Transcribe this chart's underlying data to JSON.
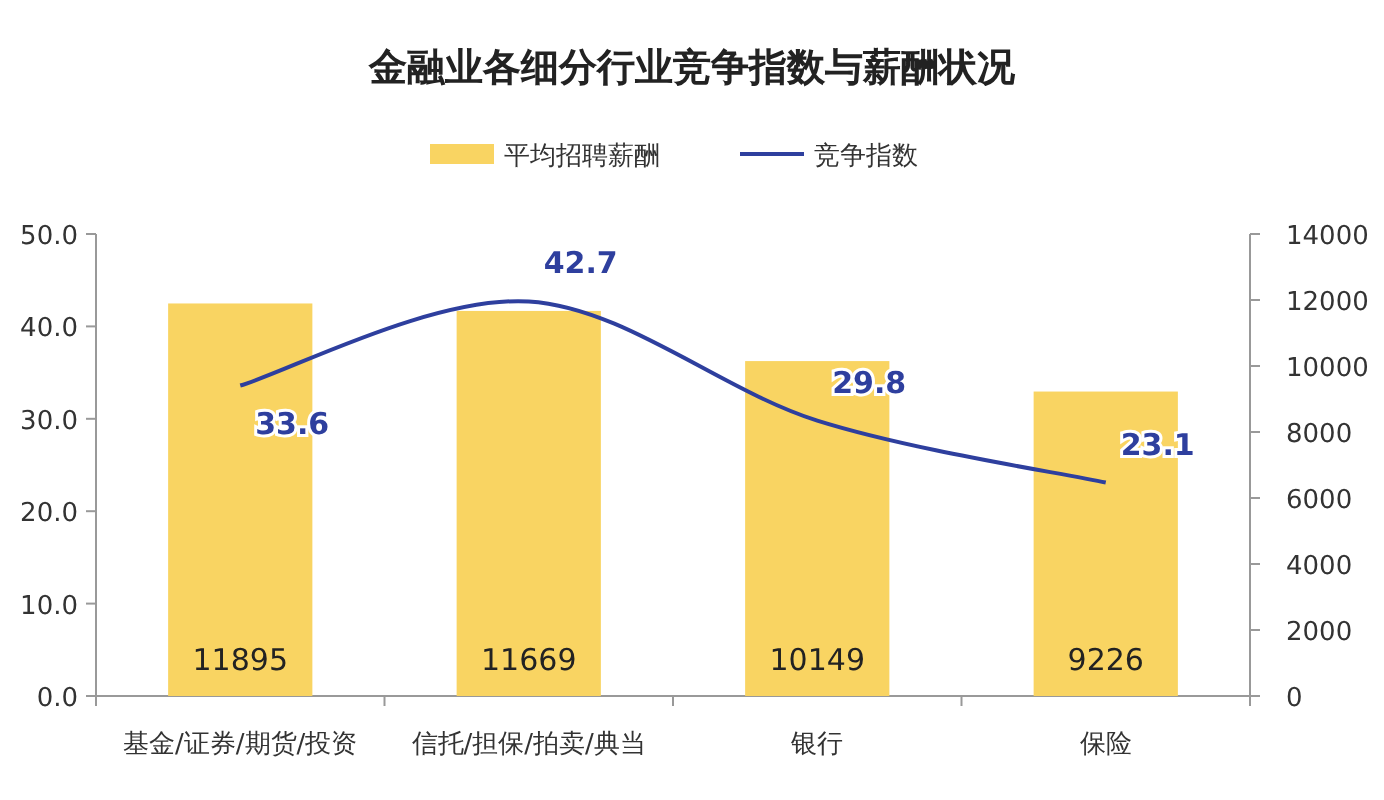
{
  "chart_data": {
    "type": "bar",
    "title": "金融业各细分行业竞争指数与薪酬状况",
    "categories": [
      "基金/证券/期货/投资",
      "信托/担保/拍卖/典当",
      "银行",
      "保险"
    ],
    "series": [
      {
        "name": "平均招聘薪酬",
        "type": "bar",
        "axis": "y2",
        "color": "#f9d462",
        "values": [
          11895,
          11669,
          10149,
          9226
        ]
      },
      {
        "name": "竞争指数",
        "type": "line",
        "axis": "y",
        "color": "#2e3f9e",
        "values": [
          33.6,
          42.7,
          29.8,
          23.1
        ]
      }
    ],
    "ylim": [
      0,
      50
    ],
    "yticks": [
      {
        "value": 0,
        "label": "0.0"
      },
      {
        "value": 10,
        "label": "10.0"
      },
      {
        "value": 20,
        "label": "20.0"
      },
      {
        "value": 30,
        "label": "30.0"
      },
      {
        "value": 40,
        "label": "40.0"
      },
      {
        "value": 50,
        "label": "50.0"
      }
    ],
    "y2lim": [
      0,
      14000
    ],
    "y2ticks": [
      0,
      2000,
      4000,
      6000,
      8000,
      10000,
      12000,
      14000
    ],
    "legend": "top",
    "data_labels": true
  }
}
